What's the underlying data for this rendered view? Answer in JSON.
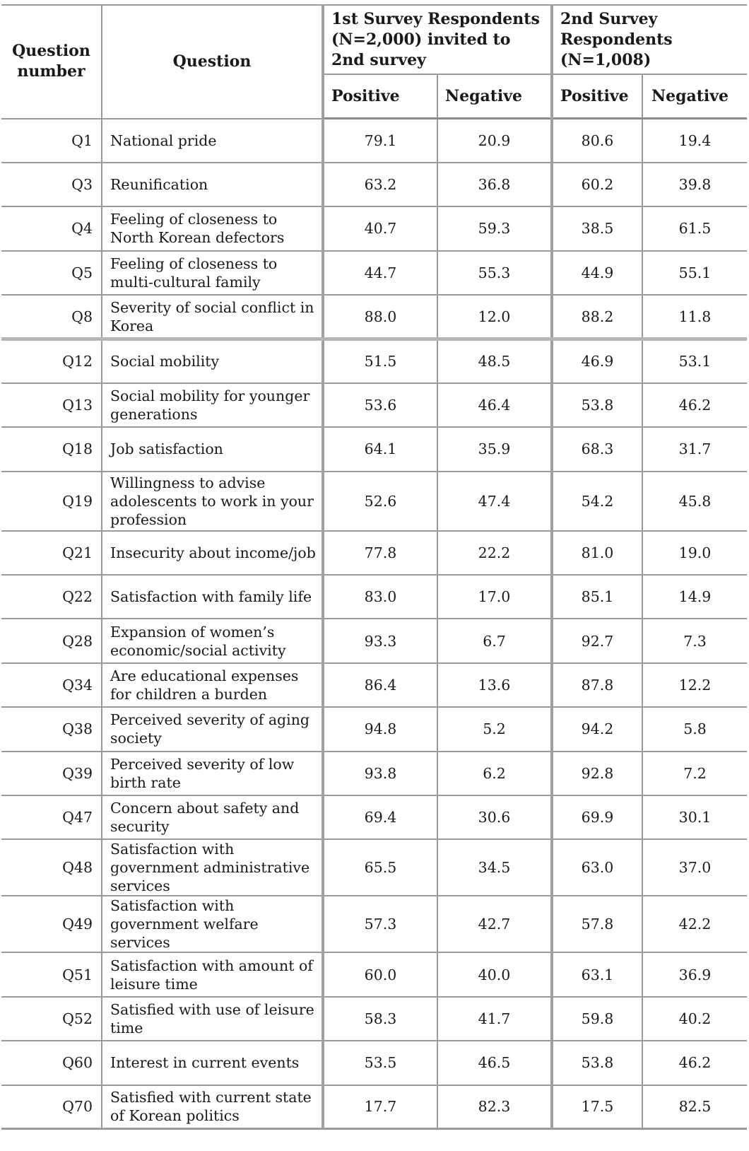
{
  "header": {
    "question_number": "Question number",
    "question": "Question",
    "group1": "1st Survey Respondents (N=2,000) invited to 2nd survey",
    "group2": "2nd Survey Respondents (N=1,008)",
    "positive": "Positive",
    "negative": "Negative"
  },
  "rows": [
    {
      "qn": "Q1",
      "q": "National pride",
      "p1": "79.1",
      "n1": "20.9",
      "p2": "80.6",
      "n2": "19.4"
    },
    {
      "qn": "Q3",
      "q": "Reunification",
      "p1": "63.2",
      "n1": "36.8",
      "p2": "60.2",
      "n2": "39.8"
    },
    {
      "qn": "Q4",
      "q": "Feeling of closeness to North Korean defectors",
      "p1": "40.7",
      "n1": "59.3",
      "p2": "38.5",
      "n2": "61.5"
    },
    {
      "qn": "Q5",
      "q": "Feeling of closeness to multi-cultural family",
      "p1": "44.7",
      "n1": "55.3",
      "p2": "44.9",
      "n2": "55.1"
    },
    {
      "qn": "Q8",
      "q": "Severity of social conflict in Korea",
      "p1": "88.0",
      "n1": "12.0",
      "p2": "88.2",
      "n2": "11.8"
    },
    {
      "qn": "Q12",
      "q": "Social mobility",
      "p1": "51.5",
      "n1": "48.5",
      "p2": "46.9",
      "n2": "53.1"
    },
    {
      "qn": "Q13",
      "q": "Social mobility for younger generations",
      "p1": "53.6",
      "n1": "46.4",
      "p2": "53.8",
      "n2": "46.2"
    },
    {
      "qn": "Q18",
      "q": "Job satisfaction",
      "p1": "64.1",
      "n1": "35.9",
      "p2": "68.3",
      "n2": "31.7"
    },
    {
      "qn": "Q19",
      "q": "Willingness to advise adolescents to work in your profession",
      "p1": "52.6",
      "n1": "47.4",
      "p2": "54.2",
      "n2": "45.8"
    },
    {
      "qn": "Q21",
      "q": "Insecurity about income/job",
      "p1": "77.8",
      "n1": "22.2",
      "p2": "81.0",
      "n2": "19.0"
    },
    {
      "qn": "Q22",
      "q": "Satisfaction with family life",
      "p1": "83.0",
      "n1": "17.0",
      "p2": "85.1",
      "n2": "14.9"
    },
    {
      "qn": "Q28",
      "q": "Expansion of women’s economic/social activity",
      "p1": "93.3",
      "n1": "6.7",
      "p2": "92.7",
      "n2": "7.3"
    },
    {
      "qn": "Q34",
      "q": "Are educational expenses for children a burden",
      "p1": "86.4",
      "n1": "13.6",
      "p2": "87.8",
      "n2": "12.2"
    },
    {
      "qn": "Q38",
      "q": "Perceived severity of aging society",
      "p1": "94.8",
      "n1": "5.2",
      "p2": "94.2",
      "n2": "5.8"
    },
    {
      "qn": "Q39",
      "q": "Perceived severity of low birth rate",
      "p1": "93.8",
      "n1": "6.2",
      "p2": "92.8",
      "n2": "7.2"
    },
    {
      "qn": "Q47",
      "q": "Concern about safety and security",
      "p1": "69.4",
      "n1": "30.6",
      "p2": "69.9",
      "n2": "30.1"
    },
    {
      "qn": "Q48",
      "q": "Satisfaction with government administrative services",
      "p1": "65.5",
      "n1": "34.5",
      "p2": "63.0",
      "n2": "37.0"
    },
    {
      "qn": "Q49",
      "q": "Satisfaction with government welfare services",
      "p1": "57.3",
      "n1": "42.7",
      "p2": "57.8",
      "n2": "42.2"
    },
    {
      "qn": "Q51",
      "q": "Satisfaction with amount of leisure time",
      "p1": "60.0",
      "n1": "40.0",
      "p2": "63.1",
      "n2": "36.9"
    },
    {
      "qn": "Q52",
      "q": "Satisfied with use of leisure time",
      "p1": "58.3",
      "n1": "41.7",
      "p2": "59.8",
      "n2": "40.2"
    },
    {
      "qn": "Q60",
      "q": "Interest in current events",
      "p1": "53.5",
      "n1": "46.5",
      "p2": "53.8",
      "n2": "46.2"
    },
    {
      "qn": "Q70",
      "q": "Satisfied with current state of Korean politics",
      "p1": "17.7",
      "n1": "82.3",
      "p2": "17.5",
      "n2": "82.5"
    }
  ]
}
